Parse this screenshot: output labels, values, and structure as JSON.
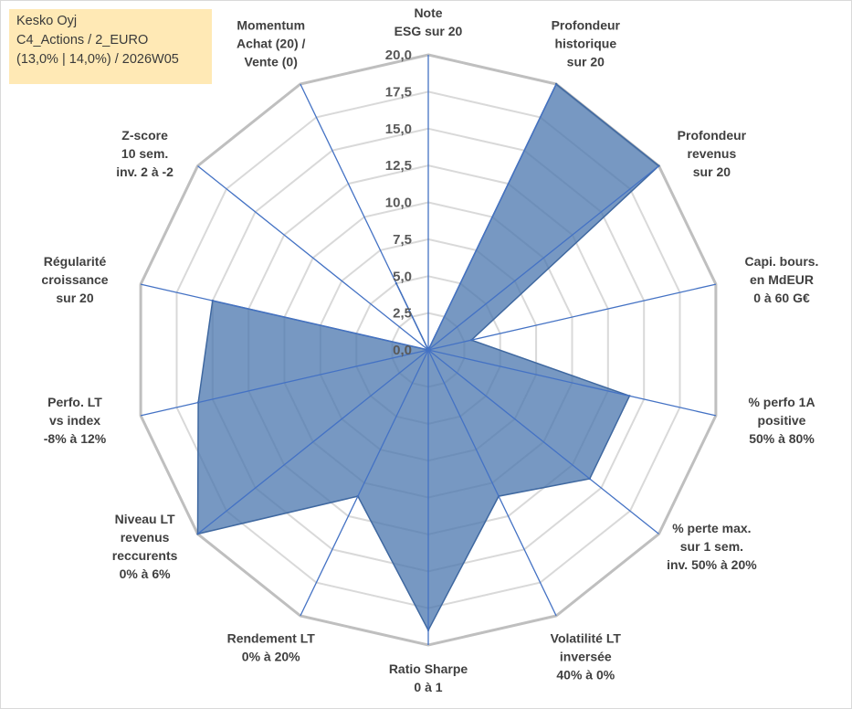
{
  "info_box": {
    "line1": "Kesko Oyj",
    "line2": "C4_Actions / 2_EURO",
    "line3": "(13,0% | 14,0%) / 2026W05"
  },
  "chart_data": {
    "type": "radar",
    "title": "",
    "categories": [
      [
        "Note",
        "ESG sur 20"
      ],
      [
        "Profondeur",
        "historique",
        "sur 20"
      ],
      [
        "Profondeur",
        "revenus",
        "sur 20"
      ],
      [
        "Capi. bours.",
        "en MdEUR",
        "0 à 60 G€"
      ],
      [
        "% perfo 1A",
        "positive",
        "50% à 80%"
      ],
      [
        "% perte max.",
        "sur 1 sem.",
        "inv. 50% à 20%"
      ],
      [
        "Volatilité LT",
        "inversée",
        "40% à 0%"
      ],
      [
        "Ratio Sharpe",
        "0 à 1"
      ],
      [
        "Rendement LT",
        "0% à 20%"
      ],
      [
        "Niveau LT",
        "revenus",
        "reccurents",
        "0% à 6%"
      ],
      [
        "Perfo. LT",
        "vs index",
        "-8% à 12%"
      ],
      [
        "Régularité",
        "croissance",
        "sur 20"
      ],
      [
        "Z-score",
        "10 sem.",
        "inv. 2 à -2"
      ],
      [
        "Momentum",
        "Achat (20) /",
        "Vente (0)"
      ]
    ],
    "series": [
      {
        "values": [
          0,
          20,
          20,
          3,
          14,
          14,
          11,
          19,
          11,
          20,
          16,
          15,
          0,
          5
        ],
        "color": "#4a76ad"
      }
    ],
    "ticks": [
      "0,0",
      "2,5",
      "5,0",
      "7,5",
      "10,0",
      "12,5",
      "15,0",
      "17,5",
      "20,0"
    ],
    "rmin": 0,
    "rmax": 20,
    "grid": true,
    "legend": "none"
  }
}
